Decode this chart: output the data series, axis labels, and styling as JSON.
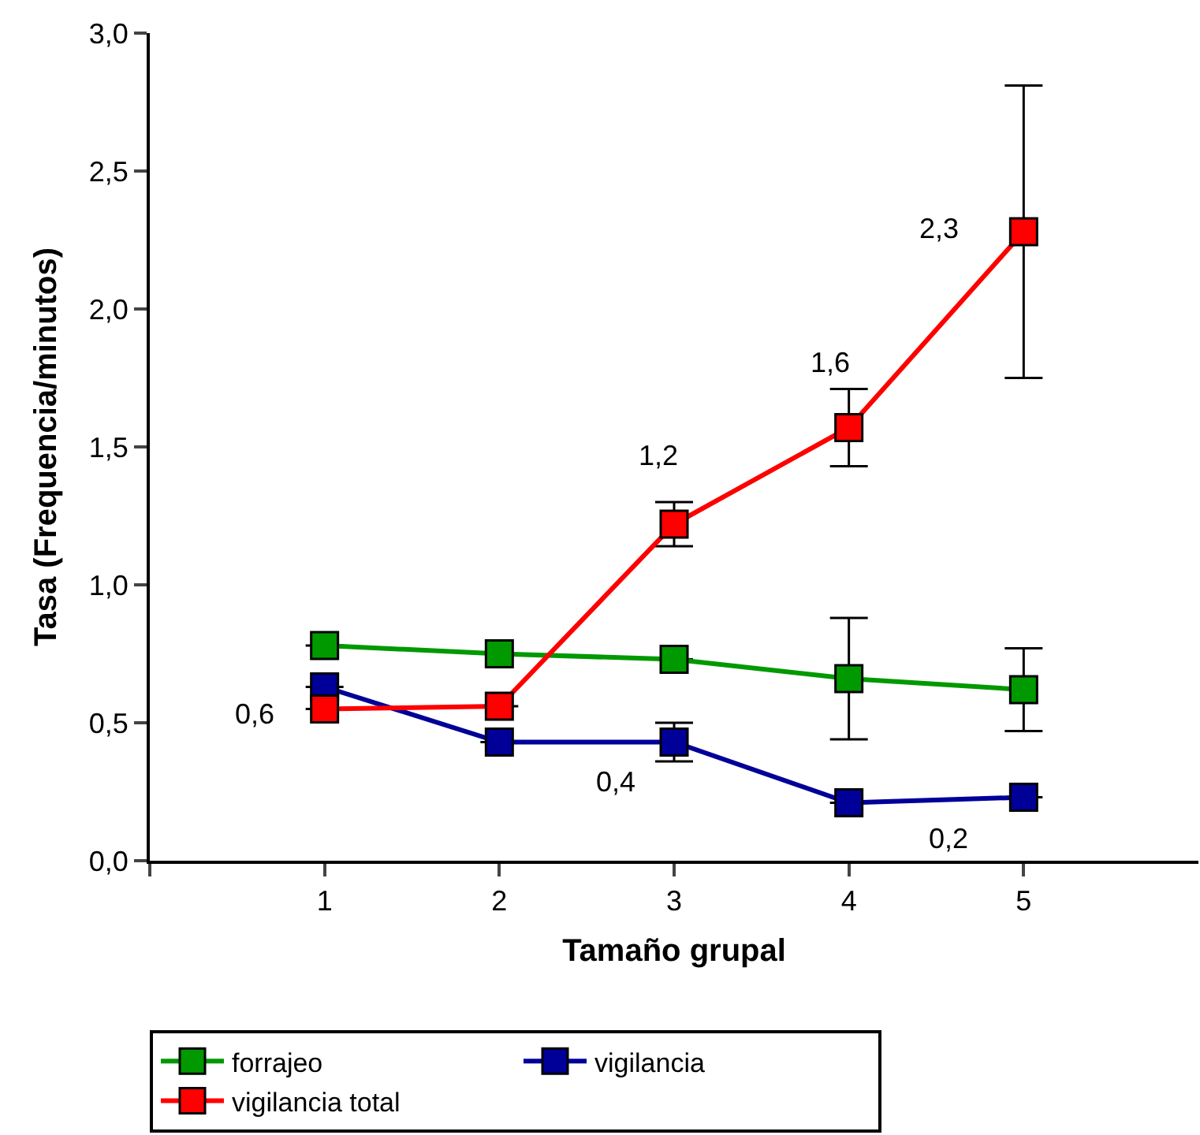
{
  "chart_data": {
    "type": "line",
    "xlabel": "Tamaño grupal",
    "ylabel": "Tasa (Frequencia/minutos)",
    "x": [
      1,
      2,
      3,
      4,
      5
    ],
    "series": [
      {
        "name": "forrajeo",
        "color": "#009900",
        "values": [
          0.78,
          0.75,
          0.73,
          0.66,
          0.62
        ],
        "errors": [
          null,
          null,
          null,
          0.22,
          0.15
        ]
      },
      {
        "name": "vigilancia",
        "color": "#000099",
        "values": [
          0.63,
          0.43,
          0.43,
          0.21,
          0.23
        ],
        "errors": [
          null,
          null,
          0.07,
          null,
          null
        ]
      },
      {
        "name": "vigilancia total",
        "color": "#ff0000",
        "values": [
          0.55,
          0.56,
          1.22,
          1.57,
          2.28
        ],
        "errors": [
          null,
          null,
          0.08,
          0.14,
          0.53
        ]
      }
    ],
    "xlim": [
      0,
      6
    ],
    "xticks": [
      {
        "value": 0,
        "label": null
      },
      1,
      2,
      3,
      4,
      5
    ],
    "ylim": [
      0,
      3
    ],
    "yticks": [
      {
        "value": 0,
        "label": "0,0"
      },
      {
        "value": 0.5,
        "label": "0,5"
      },
      {
        "value": 1,
        "label": "1,0"
      },
      {
        "value": 1.5,
        "label": "1,5"
      },
      {
        "value": 2,
        "label": "2,0"
      },
      {
        "value": 2.5,
        "label": "2,5"
      },
      {
        "value": 3,
        "label": "3,0"
      }
    ],
    "annotations": [
      {
        "text": "0,6",
        "x": 1,
        "y": 0.63
      },
      {
        "text": "0,4",
        "x": 3,
        "y": 0.43
      },
      {
        "text": "1,2",
        "x": 3,
        "y": 1.22
      },
      {
        "text": "1,6",
        "x": 4,
        "y": 1.57
      },
      {
        "text": "2,3",
        "x": 5,
        "y": 2.28
      },
      {
        "text": "0,2",
        "x": 4,
        "y": 0.21
      }
    ],
    "legend": "bottom",
    "marker": "square",
    "line_style": "solid"
  }
}
